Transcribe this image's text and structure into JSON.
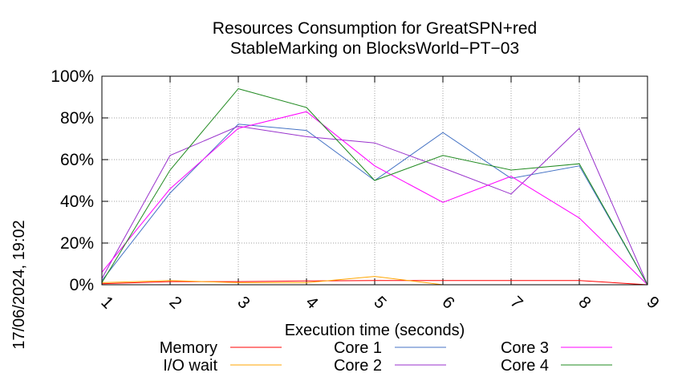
{
  "chart_data": {
    "type": "line",
    "title": [
      "Resources Consumption for GreatSPN+red",
      "StableMarking on BlocksWorld−PT−03"
    ],
    "xlabel": "Execution time (seconds)",
    "ylabel": "",
    "x": [
      1,
      2,
      3,
      4,
      5,
      6,
      7,
      8,
      9
    ],
    "xticks": [
      "1",
      "2",
      "3",
      "4",
      "5",
      "6",
      "7",
      "8",
      "9"
    ],
    "yticks": [
      "0%",
      "20%",
      "40%",
      "60%",
      "80%",
      "100%"
    ],
    "ylim": [
      0,
      100
    ],
    "xlim": [
      1,
      9
    ],
    "grid": true,
    "legend_position": "bottom",
    "side_text": "17/06/2024, 19:02",
    "series": [
      {
        "name": "Memory",
        "color": "#ff0000",
        "values": [
          0.5,
          1.5,
          1.5,
          1.8,
          2,
          2,
          2,
          2,
          0
        ]
      },
      {
        "name": "I/O wait",
        "color": "#ffa500",
        "values": [
          1,
          2,
          1,
          1,
          4,
          0,
          0,
          0,
          0
        ]
      },
      {
        "name": "Core 1",
        "color": "#4472c4",
        "values": [
          2,
          44,
          77,
          74,
          50,
          73,
          51,
          57,
          0
        ]
      },
      {
        "name": "Core 2",
        "color": "#9932cc",
        "values": [
          3,
          62,
          76,
          71,
          68,
          56,
          43.5,
          75,
          0
        ]
      },
      {
        "name": "Core 3",
        "color": "#ff00ff",
        "values": [
          6,
          46,
          75,
          83,
          57,
          39.5,
          52,
          32,
          0
        ]
      },
      {
        "name": "Core 4",
        "color": "#228b22",
        "values": [
          1,
          55,
          94,
          85,
          50,
          62,
          55,
          58,
          0
        ]
      }
    ]
  }
}
